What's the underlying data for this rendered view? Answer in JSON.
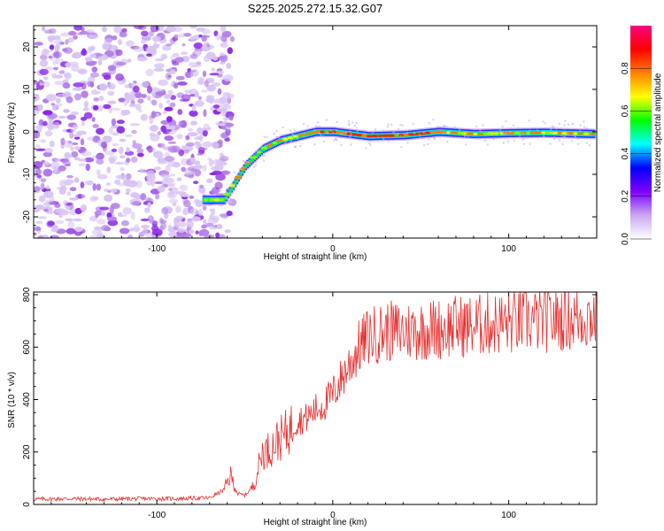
{
  "title": "S225.2025.272.15.32.G07",
  "chart_data": [
    {
      "type": "heatmap",
      "name": "spectrogram",
      "xlabel": "Height of straight line (km)",
      "ylabel": "Frequency (Hz)",
      "xlim": [
        -170,
        150
      ],
      "ylim": [
        -25,
        25
      ],
      "xticks": [
        -100,
        0,
        100
      ],
      "xtick_labels": [
        "-100",
        "0",
        "100"
      ],
      "yticks": [
        -20,
        -10,
        0,
        10,
        20
      ],
      "ytick_labels": [
        "-20",
        "-10",
        "0",
        "10",
        "20"
      ],
      "ridge": {
        "x": [
          -74,
          -62,
          -50,
          -40,
          -30,
          -20,
          -10,
          0,
          20,
          40,
          60,
          80,
          100,
          120,
          148
        ],
        "y": [
          -16,
          -16,
          -8,
          -4,
          -2,
          -1,
          0,
          0,
          -1,
          -0.8,
          0,
          -0.5,
          -0.3,
          -0.2,
          -0.5
        ]
      },
      "noise_region_x": [
        -170,
        -57
      ],
      "colorbar": {
        "label": "Normalized spectral amplitude",
        "range": [
          0,
          1
        ],
        "ticks": [
          0.0,
          0.2,
          0.4,
          0.6,
          0.8
        ],
        "tick_labels": [
          "0.0",
          "0.2",
          "0.4",
          "0.6",
          "0.8"
        ],
        "colors": [
          "#ffffff",
          "#c8a8f0",
          "#8000ff",
          "#0000ff",
          "#00ffff",
          "#00ff00",
          "#ffff00",
          "#ff8000",
          "#ff0000",
          "#ff0080"
        ]
      }
    },
    {
      "type": "line",
      "name": "snr",
      "xlabel": "Height of straight line (km)",
      "ylabel": "SNR (10 * v/v)",
      "xlim": [
        -170,
        150
      ],
      "ylim": [
        0,
        810
      ],
      "xticks": [
        -100,
        0,
        100
      ],
      "xtick_labels": [
        "-100",
        "0",
        "100"
      ],
      "yticks": [
        0,
        200,
        400,
        600,
        800
      ],
      "ytick_labels": [
        "0",
        "200",
        "400",
        "600",
        "800"
      ],
      "color": "#e83030",
      "series": [
        {
          "name": "SNR",
          "x": [
            -170,
            -150,
            -130,
            -110,
            -90,
            -70,
            -62,
            -58,
            -54,
            -50,
            -45,
            -40,
            -36,
            -32,
            -28,
            -24,
            -20,
            -15,
            -10,
            -5,
            0,
            5,
            10,
            15,
            20,
            25,
            30,
            40,
            50,
            60,
            70,
            80,
            90,
            100,
            110,
            120,
            130,
            140,
            150
          ],
          "values": [
            20,
            22,
            20,
            22,
            22,
            25,
            55,
            110,
            40,
            35,
            70,
            200,
            210,
            240,
            260,
            290,
            320,
            330,
            360,
            380,
            420,
            480,
            540,
            600,
            640,
            650,
            660,
            660,
            665,
            670,
            680,
            680,
            690,
            690,
            700,
            700,
            710,
            710,
            720
          ]
        }
      ]
    }
  ]
}
